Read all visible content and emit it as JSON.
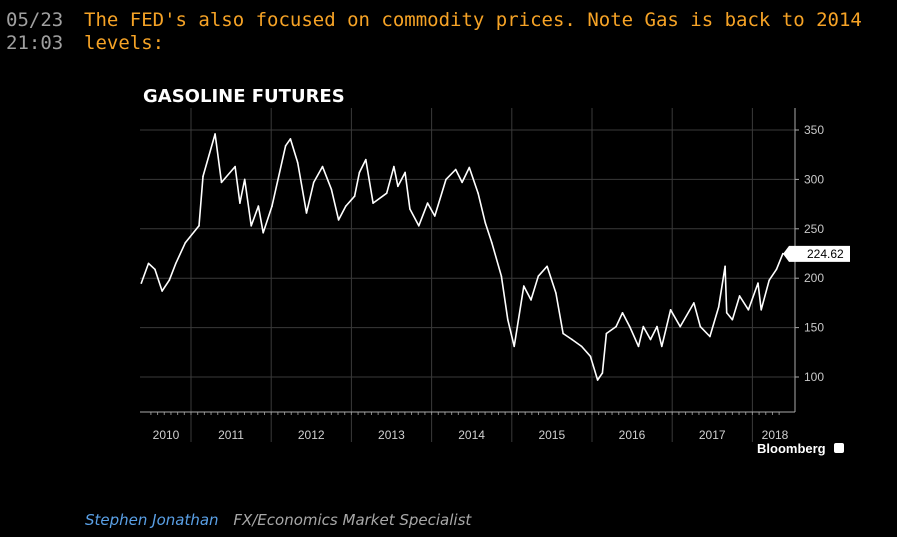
{
  "post": {
    "date": "05/23",
    "time": "21:03",
    "line1": "The FED's also focused on commodity prices. Note Gas is back to 2014",
    "line2": "levels:"
  },
  "footer": {
    "author": "Stephen Jonathan",
    "role": "FX/Economics Market Specialist"
  },
  "chart_data": {
    "type": "line",
    "title": "GASOLINE FUTURES",
    "source": "Bloomberg",
    "xlabel": "",
    "ylabel": "",
    "xlim": [
      2010.36,
      2018.42
    ],
    "ylim": [
      65,
      372
    ],
    "yticks": [
      100,
      150,
      200,
      250,
      300,
      350
    ],
    "xticks": [
      "2010",
      "2011",
      "2012",
      "2013",
      "2014",
      "2015",
      "2016",
      "2017",
      "2018"
    ],
    "last_value_label": "224.62",
    "grid": true,
    "series": [
      {
        "name": "Gasoline Futures",
        "color": "#ffffff",
        "x": [
          2010.38,
          2010.47,
          2010.55,
          2010.64,
          2010.73,
          2010.81,
          2010.93,
          2011.1,
          2011.15,
          2011.3,
          2011.38,
          2011.55,
          2011.61,
          2011.67,
          2011.75,
          2011.84,
          2011.9,
          2012.01,
          2012.18,
          2012.24,
          2012.33,
          2012.44,
          2012.53,
          2012.64,
          2012.75,
          2012.84,
          2012.93,
          2013.04,
          2013.1,
          2013.18,
          2013.27,
          2013.44,
          2013.53,
          2013.58,
          2013.67,
          2013.73,
          2013.84,
          2013.95,
          2014.04,
          2014.18,
          2014.3,
          2014.38,
          2014.47,
          2014.58,
          2014.67,
          2014.75,
          2014.87,
          2014.95,
          2015.03,
          2015.15,
          2015.24,
          2015.33,
          2015.44,
          2015.55,
          2015.64,
          2015.75,
          2015.87,
          2015.98,
          2016.07,
          2016.13,
          2016.18,
          2016.3,
          2016.38,
          2016.47,
          2016.58,
          2016.64,
          2016.73,
          2016.81,
          2016.87,
          2016.98,
          2017.1,
          2017.27,
          2017.35,
          2017.47,
          2017.58,
          2017.66,
          2017.68,
          2017.75,
          2017.84,
          2017.95,
          2018.07,
          2018.11,
          2018.21,
          2018.3,
          2018.38
        ],
        "values": [
          195,
          215,
          209,
          187,
          198,
          215,
          236,
          253,
          303,
          346,
          297,
          313,
          276,
          300,
          253,
          273,
          246,
          273,
          334,
          341,
          317,
          266,
          297,
          313,
          290,
          259,
          273,
          283,
          307,
          320,
          276,
          286,
          313,
          293,
          307,
          270,
          253,
          276,
          263,
          300,
          310,
          297,
          312,
          286,
          256,
          236,
          202,
          158,
          131,
          192,
          178,
          202,
          212,
          185,
          144,
          138,
          131,
          121,
          97,
          104,
          144,
          151,
          165,
          151,
          131,
          151,
          138,
          151,
          131,
          168,
          151,
          175,
          151,
          141,
          171,
          212,
          165,
          158,
          182,
          168,
          195,
          168,
          198,
          209,
          225
        ]
      }
    ]
  }
}
